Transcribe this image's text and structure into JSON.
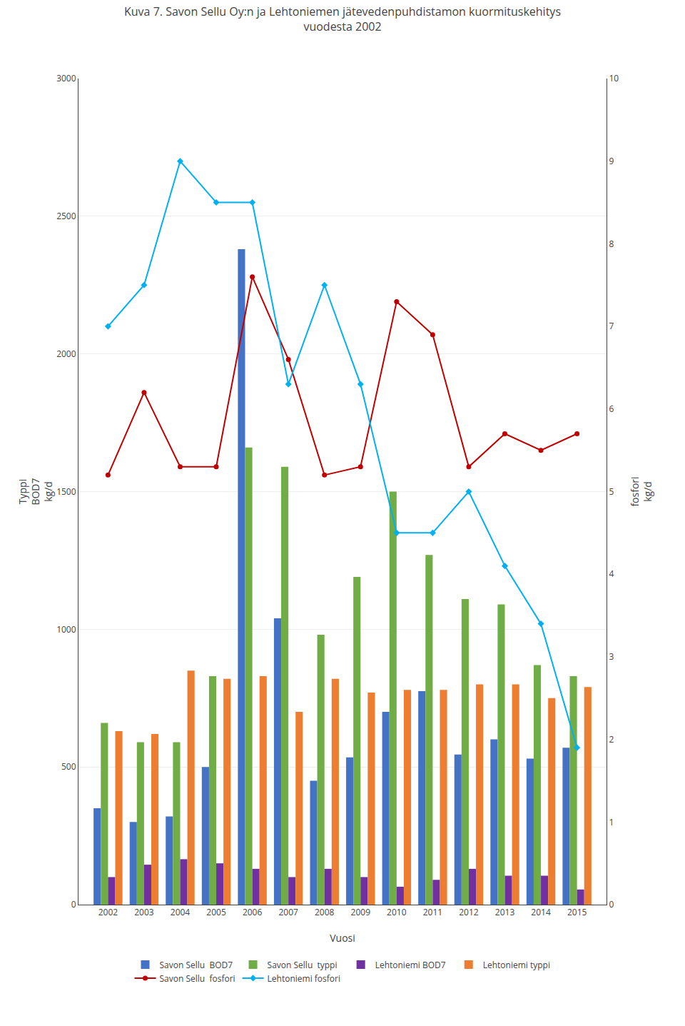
{
  "chart_data": {
    "type": "bar",
    "title": "Kuva 7. Savon Sellu Oy:n ja Lehtoniemen jätevedenpuhdistamon kuormituskehitys\nvuodesta 2002",
    "x_label": "Vuosi",
    "y_label": "Typpi\nBOD7\nkg/d",
    "y2_label": "fosfori\nkg/d",
    "categories": [
      "2002",
      "2003",
      "2004",
      "2005",
      "2006",
      "2007",
      "2008",
      "2009",
      "2010",
      "2011",
      "2012",
      "2013",
      "2014",
      "2015"
    ],
    "series": [
      {
        "name": "Savon Sellu  BOD7",
        "type": "bar",
        "color": "#4472C4",
        "values": [
          350,
          300,
          320,
          500,
          2380,
          1040,
          450,
          535,
          700,
          775,
          545,
          600,
          530,
          570
        ]
      },
      {
        "name": "Savon Sellu  typpi",
        "type": "bar",
        "color": "#70AD47",
        "values": [
          660,
          590,
          590,
          830,
          1660,
          1590,
          980,
          1190,
          1500,
          1270,
          1110,
          1090,
          870,
          830
        ]
      },
      {
        "name": "Lehtoniemi BOD7",
        "type": "bar",
        "color": "#7030A0",
        "values": [
          100,
          145,
          165,
          150,
          130,
          100,
          130,
          100,
          65,
          90,
          130,
          105,
          105,
          55
        ]
      },
      {
        "name": "Lehtoniemi typpi",
        "type": "bar",
        "color": "#ED7D31",
        "values": [
          630,
          620,
          850,
          820,
          830,
          700,
          820,
          770,
          780,
          780,
          800,
          800,
          750,
          790
        ]
      },
      {
        "name": "Savon Sellu  fosfori",
        "type": "line",
        "axis": "y2",
        "color": "#C00000",
        "marker": "circle",
        "values": [
          5.2,
          6.2,
          5.3,
          5.3,
          7.6,
          6.6,
          5.2,
          5.3,
          7.3,
          6.9,
          5.3,
          5.7,
          5.5,
          5.7
        ]
      },
      {
        "name": "Lehtoniemi fosfori",
        "type": "line",
        "axis": "y2",
        "color": "#00B0F0",
        "marker": "diamond",
        "values": [
          7.0,
          7.5,
          9.0,
          8.5,
          8.5,
          6.3,
          7.5,
          6.3,
          4.5,
          4.5,
          5.0,
          4.1,
          3.4,
          1.9
        ]
      }
    ],
    "ylim": [
      0,
      3000
    ],
    "yticks": [
      0,
      500,
      1000,
      1500,
      2000,
      2500,
      3000
    ],
    "y2lim": [
      0,
      10
    ],
    "y2ticks": [
      0,
      1,
      2,
      3,
      4,
      5,
      6,
      7,
      8,
      9,
      10
    ],
    "grid": true,
    "legend": "bottom"
  }
}
